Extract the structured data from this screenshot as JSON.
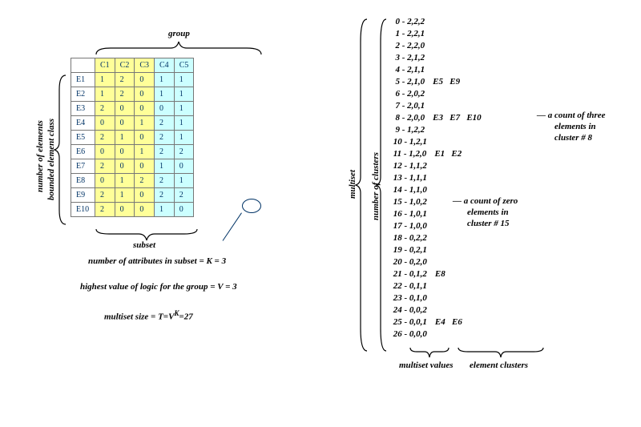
{
  "left": {
    "group_label": "group",
    "side_label_top": "number of elements",
    "side_label_bot": "bounded element class",
    "subset_label": "subset",
    "text_attrs": "number of attributes in subset  = K = 3",
    "text_logic": "highest value of logic for the group  = V = 3",
    "text_multiset_pre": "multiset size =   T=V",
    "text_multiset_sup": "K",
    "text_multiset_post": "=27",
    "table": {
      "headers": [
        "",
        "C1",
        "C2",
        "C3",
        "C4",
        "C5"
      ],
      "colclass": [
        "rowhdr",
        "yellow",
        "yellow",
        "yellow",
        "blue",
        "blue"
      ],
      "rows": [
        [
          "E1",
          "1",
          "2",
          "0",
          "1",
          "1"
        ],
        [
          "E2",
          "1",
          "2",
          "0",
          "1",
          "1"
        ],
        [
          "E3",
          "2",
          "0",
          "0",
          "0",
          "1"
        ],
        [
          "E4",
          "0",
          "0",
          "1",
          "2",
          "1"
        ],
        [
          "E5",
          "2",
          "1",
          "0",
          "2",
          "1"
        ],
        [
          "E6",
          "0",
          "0",
          "1",
          "2",
          "2"
        ],
        [
          "E7",
          "2",
          "0",
          "0",
          "1",
          "0"
        ],
        [
          "E8",
          "0",
          "1",
          "2",
          "2",
          "1"
        ],
        [
          "E9",
          "2",
          "1",
          "0",
          "2",
          "2"
        ],
        [
          "E10",
          "2",
          "0",
          "0",
          "1",
          "0"
        ]
      ]
    }
  },
  "right": {
    "multiset_label": "multiset",
    "ncluster_label": "number of clusters",
    "mvalues_label": "multiset values",
    "eclusters_label": "element clusters",
    "note8_l1": "— a count of three",
    "note8_l2": "elements in",
    "note8_l3": "cluster # 8",
    "note15_l1": "— a count of zero",
    "note15_l2": "elements in",
    "note15_l3": "cluster # 15",
    "items": [
      {
        "k": "  0 - 2,2,2",
        "e": ""
      },
      {
        "k": "  1 - 2,2,1",
        "e": ""
      },
      {
        "k": "  2 - 2,2,0",
        "e": ""
      },
      {
        "k": "  3 - 2,1,2",
        "e": ""
      },
      {
        "k": "  4 - 2,1,1",
        "e": ""
      },
      {
        "k": "  5 - 2,1,0",
        "e": "E5   E9"
      },
      {
        "k": "  6 - 2,0,2",
        "e": ""
      },
      {
        "k": "  7 - 2,0,1",
        "e": ""
      },
      {
        "k": "  8 - 2,0,0",
        "e": "E3   E7   E10"
      },
      {
        "k": "  9 - 1,2,2",
        "e": ""
      },
      {
        "k": " 10 - 1,2,1",
        "e": ""
      },
      {
        "k": " 11 - 1,2,0",
        "e": "E1   E2"
      },
      {
        "k": " 12 - 1,1,2",
        "e": ""
      },
      {
        "k": " 13 - 1,1,1",
        "e": ""
      },
      {
        "k": " 14 - 1,1,0",
        "e": ""
      },
      {
        "k": " 15 - 1,0,2",
        "e": ""
      },
      {
        "k": " 16 - 1,0,1",
        "e": ""
      },
      {
        "k": " 17 - 1,0,0",
        "e": ""
      },
      {
        "k": " 18 - 0,2,2",
        "e": ""
      },
      {
        "k": " 19 - 0,2,1",
        "e": ""
      },
      {
        "k": " 20 - 0,2,0",
        "e": ""
      },
      {
        "k": " 21 - 0,1,2",
        "e": "E8"
      },
      {
        "k": " 22 - 0,1,1",
        "e": ""
      },
      {
        "k": " 23 - 0,1,0",
        "e": ""
      },
      {
        "k": " 24 - 0,0,2",
        "e": ""
      },
      {
        "k": " 25 - 0,0,1",
        "e": "E4   E6"
      },
      {
        "k": " 26 - 0,0,0",
        "e": ""
      }
    ]
  }
}
